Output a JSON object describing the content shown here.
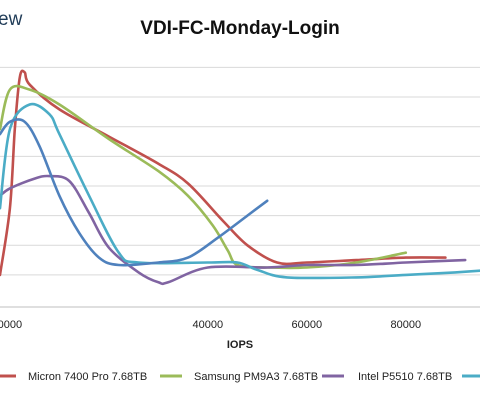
{
  "logo": {
    "text": "ew"
  },
  "chart_data": {
    "type": "line",
    "title": "VDI-FC-Monday-Login",
    "xlabel": "IOPS",
    "ylabel": "",
    "xlim": [
      -2000,
      95000
    ],
    "ylim": [
      0,
      100
    ],
    "x_ticks": [
      {
        "value": 0,
        "label": "0000"
      },
      {
        "value": 40000,
        "label": "40000"
      },
      {
        "value": 60000,
        "label": "60000"
      },
      {
        "value": 80000,
        "label": "80000"
      }
    ],
    "y_gridlines": [
      13,
      25,
      37,
      49,
      61,
      73,
      85,
      97
    ],
    "grid": true,
    "legend_position": "bottom",
    "series": [
      {
        "name": "Micron 7400 Pro 7.68TB",
        "color": "#c0504d",
        "points": [
          [
            -2000,
            13
          ],
          [
            0,
            40
          ],
          [
            1000,
            72
          ],
          [
            2000,
            93
          ],
          [
            3000,
            95
          ],
          [
            4000,
            90
          ],
          [
            10000,
            80
          ],
          [
            20000,
            69
          ],
          [
            30000,
            58
          ],
          [
            36000,
            50
          ],
          [
            43000,
            35
          ],
          [
            48000,
            25
          ],
          [
            54000,
            18
          ],
          [
            60000,
            18
          ],
          [
            70000,
            19
          ],
          [
            80000,
            20
          ],
          [
            88000,
            20
          ]
        ]
      },
      {
        "name": "Samsung PM9A3 7.68TB",
        "color": "#9bbb59",
        "points": [
          [
            -2000,
            72
          ],
          [
            0,
            88
          ],
          [
            4000,
            88
          ],
          [
            10000,
            82
          ],
          [
            20000,
            68
          ],
          [
            30000,
            55
          ],
          [
            36000,
            45
          ],
          [
            41000,
            33
          ],
          [
            44000,
            23
          ],
          [
            46000,
            17
          ],
          [
            52000,
            16
          ],
          [
            60000,
            16
          ],
          [
            70000,
            18
          ],
          [
            80000,
            22
          ]
        ]
      },
      {
        "name": "Intel P5510 7.68TB",
        "color": "#8064a2",
        "points": [
          [
            -2000,
            45
          ],
          [
            0,
            48
          ],
          [
            5000,
            52
          ],
          [
            8000,
            53
          ],
          [
            12000,
            51
          ],
          [
            16000,
            38
          ],
          [
            20000,
            24
          ],
          [
            26000,
            14
          ],
          [
            30000,
            10
          ],
          [
            32000,
            10
          ],
          [
            40000,
            16
          ],
          [
            52000,
            16
          ],
          [
            60000,
            17
          ],
          [
            70000,
            17
          ],
          [
            80000,
            18
          ],
          [
            92000,
            19
          ]
        ]
      },
      {
        "name": "",
        "color": "#4bacc6",
        "points": [
          [
            -2000,
            40
          ],
          [
            0,
            72
          ],
          [
            4000,
            82
          ],
          [
            8000,
            78
          ],
          [
            10000,
            70
          ],
          [
            16000,
            45
          ],
          [
            22000,
            22
          ],
          [
            26000,
            18
          ],
          [
            40000,
            18
          ],
          [
            46000,
            18
          ],
          [
            50000,
            15
          ],
          [
            56000,
            12
          ],
          [
            70000,
            12
          ],
          [
            80000,
            13
          ],
          [
            90000,
            14
          ],
          [
            97000,
            15
          ]
        ]
      },
      {
        "name": "",
        "color": "#4f81bd",
        "points": [
          [
            -2000,
            70
          ],
          [
            0,
            75
          ],
          [
            3000,
            75
          ],
          [
            6000,
            65
          ],
          [
            10000,
            45
          ],
          [
            14000,
            30
          ],
          [
            18000,
            20
          ],
          [
            22000,
            17
          ],
          [
            30000,
            18
          ],
          [
            36000,
            20
          ],
          [
            42000,
            28
          ],
          [
            48000,
            37
          ],
          [
            52000,
            43
          ]
        ]
      }
    ]
  }
}
